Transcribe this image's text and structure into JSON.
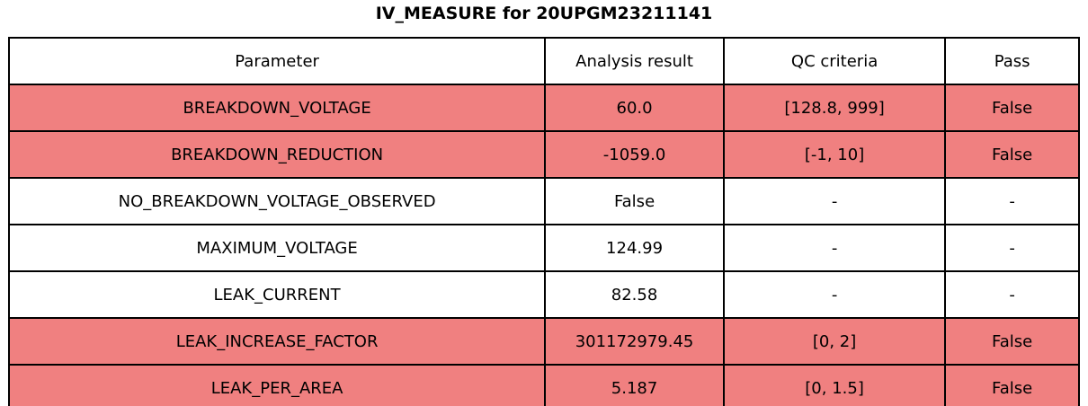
{
  "title": "IV_MEASURE for 20UPGM23211141",
  "colors": {
    "fail_row_bg": "#f08080",
    "normal_row_bg": "#ffffff",
    "border": "#000000",
    "text": "#000000"
  },
  "table": {
    "columns": [
      "Parameter",
      "Analysis result",
      "QC criteria",
      "Pass"
    ],
    "rows": [
      {
        "cells": [
          "BREAKDOWN_VOLTAGE",
          "60.0",
          "[128.8, 999]",
          "False"
        ],
        "fail": true
      },
      {
        "cells": [
          "BREAKDOWN_REDUCTION",
          "-1059.0",
          "[-1, 10]",
          "False"
        ],
        "fail": true
      },
      {
        "cells": [
          "NO_BREAKDOWN_VOLTAGE_OBSERVED",
          "False",
          "-",
          "-"
        ],
        "fail": false
      },
      {
        "cells": [
          "MAXIMUM_VOLTAGE",
          "124.99",
          "-",
          "-"
        ],
        "fail": false
      },
      {
        "cells": [
          "LEAK_CURRENT",
          "82.58",
          "-",
          "-"
        ],
        "fail": false
      },
      {
        "cells": [
          "LEAK_INCREASE_FACTOR",
          "301172979.45",
          "[0, 2]",
          "False"
        ],
        "fail": true
      },
      {
        "cells": [
          "LEAK_PER_AREA",
          "5.187",
          "[0, 1.5]",
          "False"
        ],
        "fail": true
      }
    ]
  },
  "chart_data": {
    "type": "table",
    "title": "IV_MEASURE for 20UPGM23211141",
    "columns": [
      "Parameter",
      "Analysis result",
      "QC criteria",
      "Pass"
    ],
    "rows": [
      [
        "BREAKDOWN_VOLTAGE",
        "60.0",
        "[128.8, 999]",
        "False"
      ],
      [
        "BREAKDOWN_REDUCTION",
        "-1059.0",
        "[-1, 10]",
        "False"
      ],
      [
        "NO_BREAKDOWN_VOLTAGE_OBSERVED",
        "False",
        "-",
        "-"
      ],
      [
        "MAXIMUM_VOLTAGE",
        "124.99",
        "-",
        "-"
      ],
      [
        "LEAK_CURRENT",
        "82.58",
        "-",
        "-"
      ],
      [
        "LEAK_INCREASE_FACTOR",
        "301172979.45",
        "[0, 2]",
        "False"
      ],
      [
        "LEAK_PER_AREA",
        "5.187",
        "[0, 1.5]",
        "False"
      ]
    ],
    "layout_hints": {
      "failed_rows_highlighted": true,
      "highlight_color": "#f08080",
      "header_background": "#ffffff",
      "grid": true
    }
  }
}
